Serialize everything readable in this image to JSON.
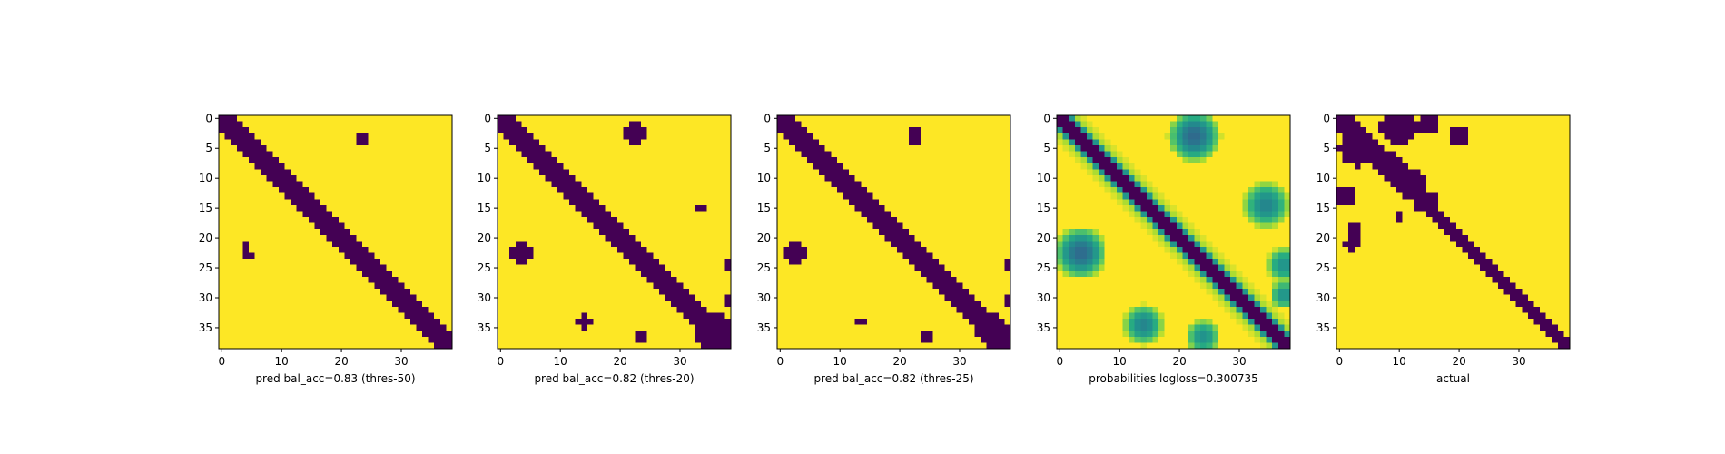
{
  "chart_data": {
    "type": "heatmap",
    "colormap": "viridis",
    "low_color": "#440154",
    "high_color": "#fde725",
    "grid": false,
    "legend": "none",
    "matrix_size": 39,
    "x_ticks": [
      0,
      10,
      20,
      30
    ],
    "y_ticks": [
      0,
      5,
      10,
      15,
      20,
      25,
      30,
      35
    ],
    "xlim": [
      -0.5,
      38.5
    ],
    "ylim": [
      38.5,
      -0.5
    ],
    "panels": [
      {
        "xlabel": "pred bal_acc=0.83 (thres-50)",
        "kind": "binary",
        "band": [
          {
            "row_start": 0,
            "row_end": 38,
            "col_start": 0,
            "col_end": 38,
            "half_width": 2
          }
        ],
        "blobs": [
          {
            "row": 3.5,
            "col": 23.5,
            "r": 0.8,
            "v": 0
          },
          {
            "row": 21.5,
            "col": 4,
            "r": 1.0,
            "v": 0
          },
          {
            "row": 23,
            "col": 4.5,
            "r": 0.6,
            "v": 0
          }
        ]
      },
      {
        "xlabel": "pred bal_acc=0.82 (thres-20)",
        "kind": "binary",
        "band": [
          {
            "row_start": 0,
            "row_end": 38,
            "col_start": 0,
            "col_end": 38,
            "half_width": 2.6
          }
        ],
        "blobs": [
          {
            "row": 2.5,
            "col": 22.5,
            "r": 1.8,
            "v": 0
          },
          {
            "row": 15,
            "col": 33.5,
            "r": 1.1,
            "v": 0
          },
          {
            "row": 22.5,
            "col": 3.5,
            "r": 2.0,
            "v": 0
          },
          {
            "row": 24.5,
            "col": 38,
            "r": 1.0,
            "v": 0
          },
          {
            "row": 34,
            "col": 14,
            "r": 1.3,
            "v": 0
          },
          {
            "row": 36.5,
            "col": 23.5,
            "r": 0.9,
            "v": 0
          },
          {
            "row": 35.5,
            "col": 35.5,
            "r": 3.2,
            "v": 0
          },
          {
            "row": 30.5,
            "col": 38.5,
            "r": 1.0,
            "v": 0
          }
        ]
      },
      {
        "xlabel": "pred bal_acc=0.82 (thres-25)",
        "kind": "binary",
        "band": [
          {
            "row_start": 0,
            "row_end": 38,
            "col_start": 0,
            "col_end": 38,
            "half_width": 2.4
          }
        ],
        "blobs": [
          {
            "row": 3,
            "col": 22.5,
            "r": 1.4,
            "v": 0
          },
          {
            "row": 15.5,
            "col": 33.5,
            "r": 0.7,
            "v": 0
          },
          {
            "row": 22.5,
            "col": 2.5,
            "r": 1.6,
            "v": 0
          },
          {
            "row": 24.5,
            "col": 38,
            "r": 0.9,
            "v": 0
          },
          {
            "row": 34,
            "col": 13.5,
            "r": 0.8,
            "v": 0
          },
          {
            "row": 36.5,
            "col": 24.5,
            "r": 0.8,
            "v": 0
          },
          {
            "row": 35.5,
            "col": 35.5,
            "r": 2.8,
            "v": 0
          },
          {
            "row": 30.5,
            "col": 38.5,
            "r": 0.8,
            "v": 0
          }
        ]
      },
      {
        "xlabel": "probabilities logloss=0.300735",
        "kind": "probability",
        "band": [
          {
            "row_start": 0,
            "row_end": 38,
            "col_start": 0,
            "col_end": 38,
            "half_width": 1.5,
            "halo": 2.5
          }
        ],
        "blobs": [
          {
            "row": 3,
            "col": 22.5,
            "r": 4.5,
            "v": 0.35
          },
          {
            "row": 14.5,
            "col": 34.5,
            "r": 4.0,
            "v": 0.45
          },
          {
            "row": 22.5,
            "col": 3.5,
            "r": 4.5,
            "v": 0.35
          },
          {
            "row": 24.5,
            "col": 37.5,
            "r": 3.0,
            "v": 0.5
          },
          {
            "row": 34.5,
            "col": 14,
            "r": 3.5,
            "v": 0.45
          },
          {
            "row": 36.5,
            "col": 24,
            "r": 3.0,
            "v": 0.5
          },
          {
            "row": 29.5,
            "col": 37.5,
            "r": 2.5,
            "v": 0.5
          }
        ]
      },
      {
        "xlabel": "actual",
        "kind": "binary",
        "band": [
          {
            "row_start": 13,
            "row_end": 38,
            "col_start": 13,
            "col_end": 38,
            "half_width": 1.6
          },
          {
            "row_start": 0,
            "row_end": 13,
            "col_start": 0,
            "col_end": 13,
            "half_width": 2.5
          }
        ],
        "blobs": [
          {
            "row": 1.5,
            "col": 10,
            "r": 3.2,
            "v": 0
          },
          {
            "row": 1,
            "col": 15,
            "r": 1.5,
            "v": 0
          },
          {
            "row": 3,
            "col": 20,
            "r": 1.5,
            "v": 0
          },
          {
            "row": 5,
            "col": 3,
            "r": 3.0,
            "v": 0
          },
          {
            "row": 8,
            "col": 9,
            "r": 2.2,
            "v": 0
          },
          {
            "row": 11,
            "col": 12,
            "r": 2.6,
            "v": 0
          },
          {
            "row": 14,
            "col": 14.5,
            "r": 2.0,
            "v": 0
          },
          {
            "row": 13,
            "col": 1,
            "r": 1.8,
            "v": 0
          },
          {
            "row": 16.5,
            "col": 10,
            "r": 1.0,
            "v": 0
          },
          {
            "row": 19,
            "col": 2.5,
            "r": 1.2,
            "v": 0
          },
          {
            "row": 21,
            "col": 2,
            "r": 1.3,
            "v": 0
          }
        ]
      }
    ]
  }
}
